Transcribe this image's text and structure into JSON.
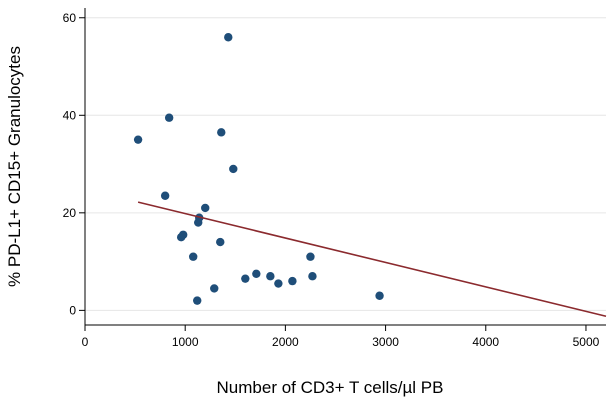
{
  "chart_data": {
    "type": "scatter",
    "title": "",
    "xlabel": "Number of CD3+ T cells/µl PB",
    "ylabel": "% PD-L1+ CD15+ Granulocytes",
    "xlim": [
      0,
      5200
    ],
    "ylim": [
      -3,
      62
    ],
    "x_ticks": [
      0,
      1000,
      2000,
      3000,
      4000,
      5000
    ],
    "y_ticks": [
      0,
      20,
      40,
      60
    ],
    "grid": "horizontal",
    "legend": "none",
    "point_color": "#1f4e79",
    "trend_color": "#8b2a2e",
    "trend_line": {
      "x": [
        530,
        5200
      ],
      "y": [
        22.2,
        -1.2
      ]
    },
    "points": [
      {
        "x": 530,
        "y": 35
      },
      {
        "x": 800,
        "y": 23.5
      },
      {
        "x": 840,
        "y": 39.5
      },
      {
        "x": 960,
        "y": 15
      },
      {
        "x": 980,
        "y": 15.5
      },
      {
        "x": 1080,
        "y": 11
      },
      {
        "x": 1120,
        "y": 2
      },
      {
        "x": 1130,
        "y": 18
      },
      {
        "x": 1140,
        "y": 19
      },
      {
        "x": 1200,
        "y": 21
      },
      {
        "x": 1290,
        "y": 4.5
      },
      {
        "x": 1350,
        "y": 14
      },
      {
        "x": 1360,
        "y": 36.5
      },
      {
        "x": 1430,
        "y": 56
      },
      {
        "x": 1480,
        "y": 29
      },
      {
        "x": 1600,
        "y": 6.5
      },
      {
        "x": 1710,
        "y": 7.5
      },
      {
        "x": 1850,
        "y": 7
      },
      {
        "x": 1930,
        "y": 5.5
      },
      {
        "x": 2070,
        "y": 6
      },
      {
        "x": 2250,
        "y": 11
      },
      {
        "x": 2270,
        "y": 7
      },
      {
        "x": 2940,
        "y": 3
      }
    ]
  }
}
